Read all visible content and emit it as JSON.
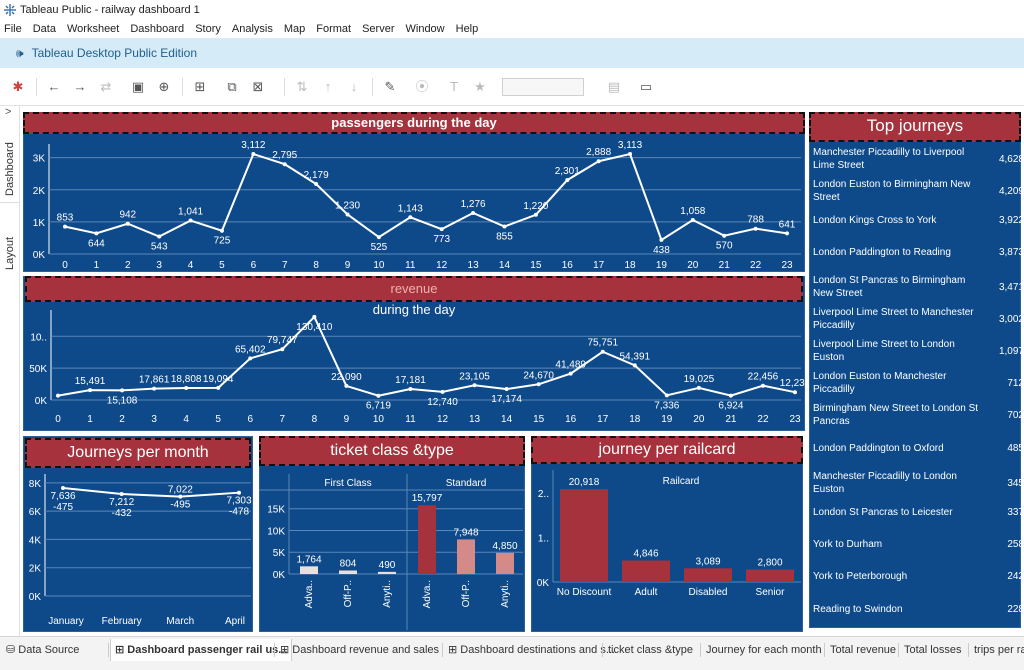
{
  "window": {
    "title": "Tableau Public - railway dashboard 1"
  },
  "menu": [
    "File",
    "Data",
    "Worksheet",
    "Dashboard",
    "Story",
    "Analysis",
    "Map",
    "Format",
    "Server",
    "Window",
    "Help"
  ],
  "banner": {
    "text": "Tableau Desktop Public Edition"
  },
  "left_rail": {
    "dashboard_label": "Dashboard",
    "layout_label": "Layout",
    "expand": ">"
  },
  "panels": {
    "passengers_title": "passengers during the day",
    "revenue_title_a": "revenue",
    "revenue_title_b": " during the day",
    "journeys_month_title": "Journeys per month",
    "ticket_title": "ticket class &type",
    "railcard_title": "journey per railcard",
    "top_title": "Top  journeys"
  },
  "top_journeys": [
    {
      "name": "Manchester Piccadilly to Liverpool Lime Street",
      "value": "4,628"
    },
    {
      "name": "London Euston to Birmingham New Street",
      "value": "4,209"
    },
    {
      "name": "London Kings Cross to York",
      "value": "3,922"
    },
    {
      "name": "London Paddington to Reading",
      "value": "3,873"
    },
    {
      "name": "London St Pancras to Birmingham New Street",
      "value": "3,471"
    },
    {
      "name": "Liverpool Lime Street to Manchester Piccadilly",
      "value": "3,002"
    },
    {
      "name": "Liverpool Lime Street to London Euston",
      "value": "1,097"
    },
    {
      "name": "London Euston to Manchester Piccadilly",
      "value": "712"
    },
    {
      "name": "Birmingham New Street to London St Pancras",
      "value": "702"
    },
    {
      "name": "London Paddington to Oxford",
      "value": "485"
    },
    {
      "name": "Manchester Piccadilly to London Euston",
      "value": "345"
    },
    {
      "name": "London St Pancras to Leicester",
      "value": "337"
    },
    {
      "name": "York to Durham",
      "value": "258"
    },
    {
      "name": "York to Peterborough",
      "value": "242"
    },
    {
      "name": "Reading to Swindon",
      "value": "228"
    }
  ],
  "tabs": [
    {
      "label": "Data Source",
      "icon": "database-icon"
    },
    {
      "label": "Dashboard passenger rail us...",
      "icon": "dashboard-icon",
      "active": true
    },
    {
      "label": "Dashboard revenue and sales",
      "icon": "dashboard-icon"
    },
    {
      "label": "Dashboard destinations and s...",
      "icon": "dashboard-icon"
    },
    {
      "label": "ticket class &type"
    },
    {
      "label": "Journey for each month"
    },
    {
      "label": "Total revenue"
    },
    {
      "label": "Total losses"
    },
    {
      "label": "trips per ra"
    }
  ],
  "colors": {
    "panel_bg": "#0e4a8a",
    "title_bg": "#a5323c",
    "bar_red": "#a5323c",
    "bar_pink": "#d58a8a",
    "bar_white": "#e8e0e0"
  },
  "chart_data": [
    {
      "id": "passengers",
      "type": "line",
      "x": [
        0,
        1,
        2,
        3,
        4,
        5,
        6,
        7,
        8,
        9,
        10,
        11,
        12,
        13,
        14,
        15,
        16,
        17,
        18,
        19,
        20,
        21,
        22,
        23
      ],
      "values": [
        853,
        644,
        942,
        543,
        1041,
        725,
        3112,
        2795,
        2179,
        1230,
        525,
        1143,
        773,
        1276,
        855,
        1220,
        2301,
        2888,
        3113,
        438,
        1058,
        570,
        788,
        641
      ],
      "labels": [
        "853",
        "644",
        "942",
        "543",
        "1,041",
        "725",
        "3,112",
        "2,795",
        "2,179",
        "1,230",
        "525",
        "1,143",
        "773",
        "1,276",
        "855",
        "1,220",
        "2,301",
        "2,888",
        "3,113",
        "438",
        "1,058",
        "570",
        "788",
        "641"
      ],
      "y_ticks": [
        {
          "v": 0,
          "t": "0K"
        },
        {
          "v": 1000,
          "t": "1K"
        },
        {
          "v": 2000,
          "t": "2K"
        },
        {
          "v": 3000,
          "t": "3K"
        }
      ],
      "ylim": [
        0,
        3300
      ]
    },
    {
      "id": "revenue",
      "type": "line",
      "x": [
        0,
        1,
        2,
        3,
        4,
        5,
        6,
        7,
        8,
        9,
        10,
        11,
        12,
        13,
        14,
        15,
        16,
        17,
        18,
        19,
        20,
        21,
        22,
        23
      ],
      "values": [
        6800,
        15491,
        15108,
        17861,
        18808,
        19094,
        65402,
        79747,
        130410,
        22090,
        6719,
        17181,
        12740,
        23105,
        17174,
        24670,
        41489,
        75751,
        54391,
        7336,
        19025,
        6924,
        22456,
        12239
      ],
      "labels": [
        "",
        "15,491",
        "15,108",
        "17,861",
        "18,808",
        "19,094",
        "65,402",
        "79,747",
        "130,410",
        "22,090",
        "6,719",
        "17,181",
        "12,740",
        "23,105",
        "17,174",
        "24,670",
        "41,489",
        "75,751",
        "54,391",
        "7,336",
        "19,025",
        "6,924",
        "22,456",
        "12,239"
      ],
      "y_ticks": [
        {
          "v": 0,
          "t": "0K"
        },
        {
          "v": 50000,
          "t": "50K"
        },
        {
          "v": 100000,
          "t": "10.."
        }
      ],
      "ylim": [
        0,
        135000
      ]
    },
    {
      "id": "journeys_per_month",
      "type": "line",
      "categories": [
        "January",
        "February",
        "March",
        "April"
      ],
      "values": [
        7636,
        7212,
        7022,
        7303
      ],
      "labels": [
        "7,636",
        "7,212",
        "7,022",
        "7,303"
      ],
      "diff_labels": [
        "-475",
        "-432",
        "-495",
        "-478"
      ],
      "y_ticks": [
        {
          "v": 0,
          "t": "0K"
        },
        {
          "v": 2000,
          "t": "2K"
        },
        {
          "v": 4000,
          "t": "4K"
        },
        {
          "v": 6000,
          "t": "6K"
        },
        {
          "v": 8000,
          "t": "8K"
        }
      ],
      "ylim": [
        0,
        8200
      ]
    },
    {
      "id": "ticket_class",
      "type": "bar",
      "groups": [
        "First Class",
        "Standard"
      ],
      "categories": [
        "Adva..",
        "Off-P..",
        "Anyti..",
        "Adva..",
        "Off-P..",
        "Anyti.."
      ],
      "values": [
        1764,
        804,
        490,
        15797,
        7948,
        4850
      ],
      "labels": [
        "1,764",
        "804",
        "490",
        "15,797",
        "7,948",
        "4,850"
      ],
      "y_ticks": [
        {
          "v": 0,
          "t": "0K"
        },
        {
          "v": 5000,
          "t": "5K"
        },
        {
          "v": 10000,
          "t": "10K"
        },
        {
          "v": 15000,
          "t": "15K"
        }
      ],
      "ylim": [
        0,
        17000
      ]
    },
    {
      "id": "railcard",
      "type": "bar",
      "header": "Railcard",
      "categories": [
        "No Discount",
        "Adult",
        "Disabled",
        "Senior"
      ],
      "values": [
        20918,
        4846,
        3089,
        2800
      ],
      "labels": [
        "20,918",
        "4,846",
        "3,089",
        "2,800"
      ],
      "y_ticks": [
        {
          "v": 0,
          "t": "0K"
        },
        {
          "v": 10000,
          "t": "1.."
        },
        {
          "v": 20000,
          "t": "2.."
        }
      ],
      "ylim": [
        0,
        22500
      ]
    }
  ]
}
